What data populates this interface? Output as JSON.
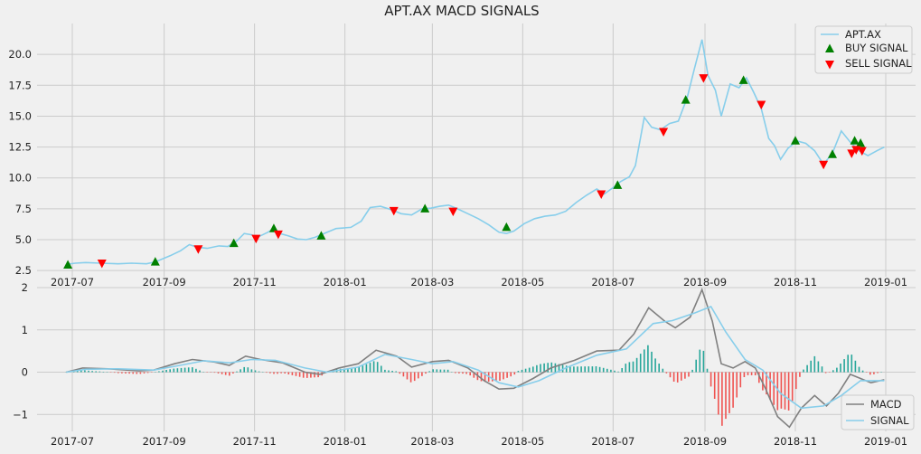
{
  "chart_data": [
    {
      "type": "line",
      "title": "APT.AX MACD SIGNALS",
      "ylim": [
        2.0,
        22.5
      ],
      "y_ticks": [
        "2.5",
        "5.0",
        "7.5",
        "10.0",
        "12.5",
        "15.0",
        "17.5",
        "20.0"
      ],
      "x_ticks": [
        "2017-07",
        "2017-09",
        "2017-11",
        "2018-01",
        "2018-03",
        "2018-05",
        "2018-07",
        "2018-09",
        "2018-11",
        "2019-01"
      ],
      "grid": true,
      "legend_position": "top-right",
      "colors": {
        "price": "#87ceeb",
        "buy": "#008000",
        "sell": "#ff0000"
      },
      "series": [
        {
          "name": "APT.AX",
          "type": "line",
          "points": [
            [
              "2017-06-27",
              3.0
            ],
            [
              "2017-07-03",
              3.1
            ],
            [
              "2017-07-10",
              3.15
            ],
            [
              "2017-07-20",
              3.1
            ],
            [
              "2017-08-01",
              3.05
            ],
            [
              "2017-08-10",
              3.1
            ],
            [
              "2017-08-20",
              3.05
            ],
            [
              "2017-08-26",
              3.2
            ],
            [
              "2017-09-05",
              3.7
            ],
            [
              "2017-09-12",
              4.1
            ],
            [
              "2017-09-18",
              4.6
            ],
            [
              "2017-09-23",
              4.4
            ],
            [
              "2017-09-30",
              4.3
            ],
            [
              "2017-10-08",
              4.5
            ],
            [
              "2017-10-14",
              4.45
            ],
            [
              "2017-10-20",
              4.9
            ],
            [
              "2017-10-25",
              5.5
            ],
            [
              "2017-10-30",
              5.4
            ],
            [
              "2017-11-03",
              5.2
            ],
            [
              "2017-11-10",
              5.6
            ],
            [
              "2017-11-14",
              5.9
            ],
            [
              "2017-11-18",
              5.5
            ],
            [
              "2017-11-24",
              5.3
            ],
            [
              "2017-11-30",
              5.05
            ],
            [
              "2017-12-06",
              5.0
            ],
            [
              "2017-12-12",
              5.2
            ],
            [
              "2017-12-20",
              5.6
            ],
            [
              "2017-12-26",
              5.9
            ],
            [
              "2018-01-05",
              6.0
            ],
            [
              "2018-01-12",
              6.5
            ],
            [
              "2018-01-18",
              7.6
            ],
            [
              "2018-01-25",
              7.7
            ],
            [
              "2018-02-02",
              7.4
            ],
            [
              "2018-02-08",
              7.1
            ],
            [
              "2018-02-15",
              7.0
            ],
            [
              "2018-02-22",
              7.5
            ],
            [
              "2018-02-28",
              7.55
            ],
            [
              "2018-03-06",
              7.7
            ],
            [
              "2018-03-12",
              7.8
            ],
            [
              "2018-03-18",
              7.5
            ],
            [
              "2018-03-25",
              7.1
            ],
            [
              "2018-04-01",
              6.7
            ],
            [
              "2018-04-08",
              6.2
            ],
            [
              "2018-04-15",
              5.6
            ],
            [
              "2018-04-20",
              5.5
            ],
            [
              "2018-04-25",
              5.7
            ],
            [
              "2018-05-02",
              6.3
            ],
            [
              "2018-05-09",
              6.7
            ],
            [
              "2018-05-16",
              6.9
            ],
            [
              "2018-05-23",
              7.0
            ],
            [
              "2018-05-30",
              7.3
            ],
            [
              "2018-06-06",
              8.0
            ],
            [
              "2018-06-13",
              8.6
            ],
            [
              "2018-06-20",
              9.1
            ],
            [
              "2018-06-25",
              8.7
            ],
            [
              "2018-07-02",
              9.3
            ],
            [
              "2018-07-06",
              9.7
            ],
            [
              "2018-07-12",
              10.1
            ],
            [
              "2018-07-16",
              11.0
            ],
            [
              "2018-07-22",
              14.9
            ],
            [
              "2018-07-27",
              14.1
            ],
            [
              "2018-08-02",
              13.9
            ],
            [
              "2018-08-08",
              14.4
            ],
            [
              "2018-08-14",
              14.6
            ],
            [
              "2018-08-20",
              16.5
            ],
            [
              "2018-08-25",
              18.9
            ],
            [
              "2018-08-30",
              21.2
            ],
            [
              "2018-09-03",
              18.3
            ],
            [
              "2018-09-08",
              17.1
            ],
            [
              "2018-09-12",
              15.0
            ],
            [
              "2018-09-18",
              17.6
            ],
            [
              "2018-09-24",
              17.3
            ],
            [
              "2018-09-29",
              18.1
            ],
            [
              "2018-10-04",
              16.9
            ],
            [
              "2018-10-09",
              15.6
            ],
            [
              "2018-10-14",
              13.2
            ],
            [
              "2018-10-18",
              12.6
            ],
            [
              "2018-10-22",
              11.5
            ],
            [
              "2018-10-27",
              12.4
            ],
            [
              "2018-11-02",
              13.0
            ],
            [
              "2018-11-08",
              12.8
            ],
            [
              "2018-11-14",
              12.2
            ],
            [
              "2018-11-20",
              11.1
            ],
            [
              "2018-11-26",
              12.0
            ],
            [
              "2018-12-02",
              13.8
            ],
            [
              "2018-12-08",
              12.9
            ],
            [
              "2018-12-14",
              12.2
            ],
            [
              "2018-12-20",
              11.8
            ],
            [
              "2018-12-26",
              12.2
            ],
            [
              "2018-12-31",
              12.5
            ]
          ]
        },
        {
          "name": "BUY SIGNAL",
          "type": "marker",
          "marker": "triangle-up",
          "points": [
            [
              "2017-06-28",
              2.95
            ],
            [
              "2017-08-26",
              3.2
            ],
            [
              "2017-10-18",
              4.7
            ],
            [
              "2017-11-14",
              5.9
            ],
            [
              "2017-12-16",
              5.3
            ],
            [
              "2018-02-24",
              7.5
            ],
            [
              "2018-04-20",
              6.0
            ],
            [
              "2018-07-04",
              9.4
            ],
            [
              "2018-08-19",
              16.3
            ],
            [
              "2018-09-27",
              17.9
            ],
            [
              "2018-11-01",
              13.0
            ],
            [
              "2018-11-26",
              11.9
            ],
            [
              "2018-12-11",
              13.0
            ],
            [
              "2018-12-15",
              12.8
            ]
          ]
        },
        {
          "name": "SELL SIGNAL",
          "type": "marker",
          "marker": "triangle-down",
          "points": [
            [
              "2017-07-21",
              3.1
            ],
            [
              "2017-09-24",
              4.25
            ],
            [
              "2017-11-02",
              5.1
            ],
            [
              "2017-11-17",
              5.45
            ],
            [
              "2018-02-03",
              7.35
            ],
            [
              "2018-03-15",
              7.3
            ],
            [
              "2018-06-23",
              8.7
            ],
            [
              "2018-08-04",
              13.75
            ],
            [
              "2018-08-31",
              18.1
            ],
            [
              "2018-10-09",
              15.95
            ],
            [
              "2018-11-20",
              11.1
            ],
            [
              "2018-12-09",
              12.0
            ],
            [
              "2018-12-12",
              12.3
            ],
            [
              "2018-12-16",
              12.2
            ]
          ]
        }
      ]
    },
    {
      "type": "line",
      "ylim": [
        -1.4,
        2.0
      ],
      "y_ticks": [
        "−1",
        "0",
        "1",
        "2"
      ],
      "x_ticks": [
        "2017-07",
        "2017-09",
        "2017-11",
        "2018-01",
        "2018-03",
        "2018-05",
        "2018-07",
        "2018-09",
        "2018-11",
        "2019-01"
      ],
      "grid": true,
      "legend_position": "bottom-right",
      "colors": {
        "macd": "#808080",
        "signal": "#87ceeb",
        "hist_pos": "#26a69a",
        "hist_neg": "#ef5350"
      },
      "series": [
        {
          "name": "MACD",
          "points": [
            [
              "2017-06-27",
              0.0
            ],
            [
              "2017-07-08",
              0.1
            ],
            [
              "2017-07-25",
              0.08
            ],
            [
              "2017-08-15",
              0.03
            ],
            [
              "2017-08-25",
              0.05
            ],
            [
              "2017-09-08",
              0.2
            ],
            [
              "2017-09-20",
              0.3
            ],
            [
              "2017-10-05",
              0.24
            ],
            [
              "2017-10-15",
              0.16
            ],
            [
              "2017-10-26",
              0.38
            ],
            [
              "2017-11-05",
              0.3
            ],
            [
              "2017-11-20",
              0.22
            ],
            [
              "2017-12-05",
              0.0
            ],
            [
              "2017-12-15",
              -0.05
            ],
            [
              "2017-12-28",
              0.1
            ],
            [
              "2018-01-10",
              0.2
            ],
            [
              "2018-01-22",
              0.52
            ],
            [
              "2018-02-05",
              0.38
            ],
            [
              "2018-02-15",
              0.12
            ],
            [
              "2018-03-01",
              0.25
            ],
            [
              "2018-03-12",
              0.28
            ],
            [
              "2018-03-25",
              0.1
            ],
            [
              "2018-04-05",
              -0.2
            ],
            [
              "2018-04-15",
              -0.4
            ],
            [
              "2018-04-25",
              -0.38
            ],
            [
              "2018-05-08",
              -0.15
            ],
            [
              "2018-05-20",
              0.1
            ],
            [
              "2018-06-05",
              0.28
            ],
            [
              "2018-06-20",
              0.5
            ],
            [
              "2018-07-05",
              0.52
            ],
            [
              "2018-07-15",
              0.9
            ],
            [
              "2018-07-25",
              1.52
            ],
            [
              "2018-08-05",
              1.2
            ],
            [
              "2018-08-12",
              1.05
            ],
            [
              "2018-08-22",
              1.3
            ],
            [
              "2018-08-30",
              1.95
            ],
            [
              "2018-09-06",
              1.2
            ],
            [
              "2018-09-12",
              0.2
            ],
            [
              "2018-09-20",
              0.1
            ],
            [
              "2018-09-28",
              0.25
            ],
            [
              "2018-10-05",
              0.1
            ],
            [
              "2018-10-12",
              -0.4
            ],
            [
              "2018-10-20",
              -1.05
            ],
            [
              "2018-10-28",
              -1.3
            ],
            [
              "2018-11-05",
              -0.85
            ],
            [
              "2018-11-14",
              -0.55
            ],
            [
              "2018-11-22",
              -0.8
            ],
            [
              "2018-11-30",
              -0.5
            ],
            [
              "2018-12-08",
              -0.05
            ],
            [
              "2018-12-15",
              -0.15
            ],
            [
              "2018-12-22",
              -0.25
            ],
            [
              "2018-12-31",
              -0.18
            ]
          ]
        },
        {
          "name": "SIGNAL",
          "points": [
            [
              "2017-06-27",
              0.0
            ],
            [
              "2017-07-10",
              0.07
            ],
            [
              "2017-08-01",
              0.08
            ],
            [
              "2017-08-25",
              0.05
            ],
            [
              "2017-09-10",
              0.15
            ],
            [
              "2017-09-28",
              0.27
            ],
            [
              "2017-10-15",
              0.22
            ],
            [
              "2017-10-30",
              0.3
            ],
            [
              "2017-11-15",
              0.28
            ],
            [
              "2017-12-05",
              0.1
            ],
            [
              "2017-12-20",
              0.0
            ],
            [
              "2018-01-10",
              0.12
            ],
            [
              "2018-01-28",
              0.42
            ],
            [
              "2018-02-15",
              0.3
            ],
            [
              "2018-03-01",
              0.2
            ],
            [
              "2018-03-15",
              0.25
            ],
            [
              "2018-04-01",
              0.05
            ],
            [
              "2018-04-15",
              -0.25
            ],
            [
              "2018-04-28",
              -0.35
            ],
            [
              "2018-05-12",
              -0.2
            ],
            [
              "2018-05-30",
              0.1
            ],
            [
              "2018-06-20",
              0.4
            ],
            [
              "2018-07-10",
              0.55
            ],
            [
              "2018-07-28",
              1.15
            ],
            [
              "2018-08-10",
              1.22
            ],
            [
              "2018-08-25",
              1.4
            ],
            [
              "2018-09-05",
              1.55
            ],
            [
              "2018-09-15",
              0.95
            ],
            [
              "2018-09-28",
              0.3
            ],
            [
              "2018-10-10",
              0.05
            ],
            [
              "2018-10-22",
              -0.5
            ],
            [
              "2018-11-05",
              -0.85
            ],
            [
              "2018-11-20",
              -0.8
            ],
            [
              "2018-12-02",
              -0.55
            ],
            [
              "2018-12-15",
              -0.2
            ],
            [
              "2018-12-31",
              -0.2
            ]
          ]
        }
      ]
    }
  ]
}
